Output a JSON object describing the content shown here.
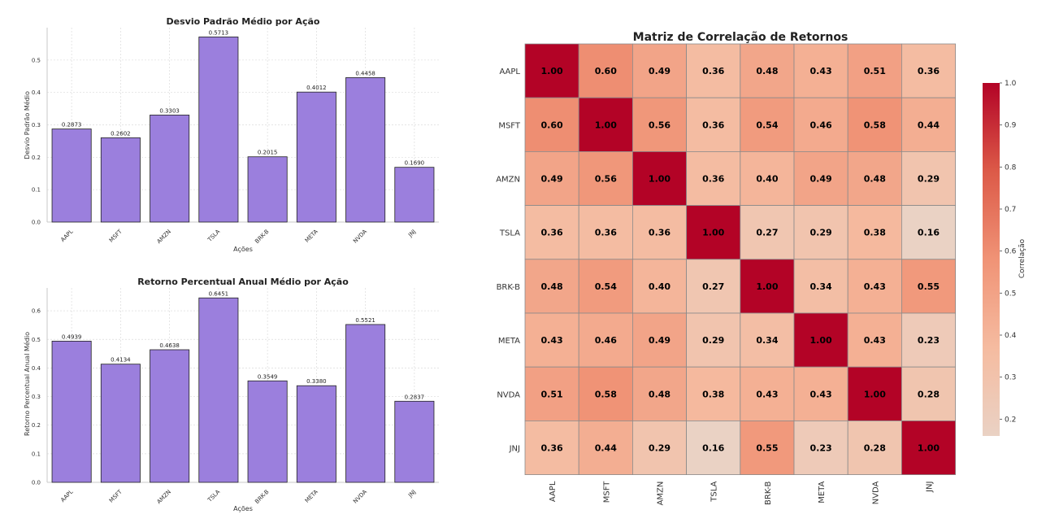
{
  "chart_data": [
    {
      "type": "bar",
      "title": "Desvio Padrão Médio por Ação",
      "xlabel": "Ações",
      "ylabel": "Desvio Padrão Médio",
      "categories": [
        "AAPL",
        "MSFT",
        "AMZN",
        "TSLA",
        "BRK-B",
        "META",
        "NVDA",
        "JNJ"
      ],
      "values": [
        0.2873,
        0.2602,
        0.3303,
        0.5713,
        0.2015,
        0.4012,
        0.4458,
        0.169
      ],
      "value_labels": [
        "0.2873",
        "0.2602",
        "0.3303",
        "0.5713",
        "0.2015",
        "0.4012",
        "0.4458",
        "0.1690"
      ],
      "yticks": [
        0.0,
        0.1,
        0.2,
        0.3,
        0.4,
        0.5
      ],
      "ytick_labels": [
        "0.0",
        "0.1",
        "0.2",
        "0.3",
        "0.4",
        "0.5"
      ],
      "ylim": [
        0,
        0.6
      ],
      "bar_color": "#9b7fdd",
      "grid": true
    },
    {
      "type": "bar",
      "title": "Retorno Percentual Anual Médio por Ação",
      "xlabel": "Ações",
      "ylabel": "Retorno Percentual Anual Médio",
      "categories": [
        "AAPL",
        "MSFT",
        "AMZN",
        "TSLA",
        "BRK-B",
        "META",
        "NVDA",
        "JNJ"
      ],
      "values": [
        0.4939,
        0.4134,
        0.4638,
        0.6451,
        0.3549,
        0.338,
        0.5521,
        0.2837
      ],
      "value_labels": [
        "0.4939",
        "0.4134",
        "0.4638",
        "0.6451",
        "0.3549",
        "0.3380",
        "0.5521",
        "0.2837"
      ],
      "yticks": [
        0.0,
        0.1,
        0.2,
        0.3,
        0.4,
        0.5,
        0.6
      ],
      "ytick_labels": [
        "0.0",
        "0.1",
        "0.2",
        "0.3",
        "0.4",
        "0.5",
        "0.6"
      ],
      "ylim": [
        0,
        0.68
      ],
      "bar_color": "#9b7fdd",
      "grid": true
    },
    {
      "type": "heatmap",
      "title": "Matriz de Correlação de Retornos",
      "labels": [
        "AAPL",
        "MSFT",
        "AMZN",
        "TSLA",
        "BRK-B",
        "META",
        "NVDA",
        "JNJ"
      ],
      "matrix": [
        [
          1.0,
          0.6,
          0.49,
          0.36,
          0.48,
          0.43,
          0.51,
          0.36
        ],
        [
          0.6,
          1.0,
          0.56,
          0.36,
          0.54,
          0.46,
          0.58,
          0.44
        ],
        [
          0.49,
          0.56,
          1.0,
          0.36,
          0.4,
          0.49,
          0.48,
          0.29
        ],
        [
          0.36,
          0.36,
          0.36,
          1.0,
          0.27,
          0.29,
          0.38,
          0.16
        ],
        [
          0.48,
          0.54,
          0.4,
          0.27,
          1.0,
          0.34,
          0.43,
          0.55
        ],
        [
          0.43,
          0.46,
          0.49,
          0.29,
          0.34,
          1.0,
          0.43,
          0.23
        ],
        [
          0.51,
          0.58,
          0.48,
          0.38,
          0.43,
          0.43,
          1.0,
          0.28
        ],
        [
          0.36,
          0.44,
          0.29,
          0.16,
          0.55,
          0.23,
          0.28,
          1.0
        ]
      ],
      "colorbar_label": "Correlação",
      "colorbar_range": [
        0.16,
        1.0
      ],
      "colorbar_ticks": [
        0.2,
        0.3,
        0.4,
        0.5,
        0.6,
        0.7,
        0.8,
        0.9,
        1.0
      ],
      "colorbar_tick_labels": [
        "0.2",
        "0.3",
        "0.4",
        "0.5",
        "0.6",
        "0.7",
        "0.8",
        "0.9",
        "1.0"
      ],
      "colormap": "coolwarm (warm half)",
      "grid": false
    }
  ]
}
